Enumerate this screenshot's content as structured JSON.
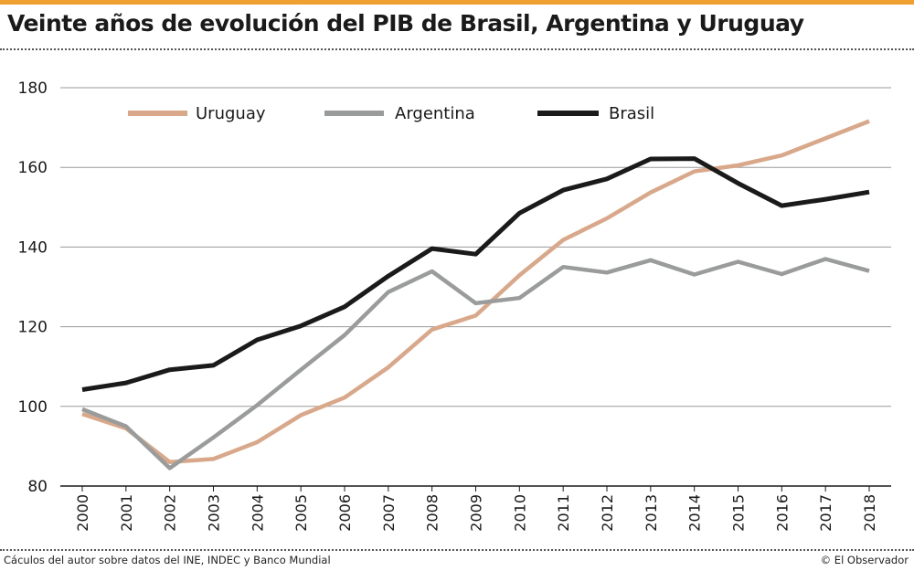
{
  "header": {
    "title": "Veinte años de evolución del PIB de Brasil, Argentina y Uruguay"
  },
  "footer": {
    "source": "Cáculos del autor sobre datos del INE, INDEC y Banco Mundial",
    "credit": "© El Observador"
  },
  "colors": {
    "accent_rule": "#f0a032",
    "uruguay": "#d9a88a",
    "argentina": "#9a9c9b",
    "brasil": "#1a1a1a",
    "grid": "#9a9a9a"
  },
  "chart_data": {
    "type": "line",
    "title": "Veinte años de evolución del PIB de Brasil, Argentina y Uruguay",
    "xlabel": "",
    "ylabel": "",
    "ylim": [
      80,
      180
    ],
    "yticks": [
      "80",
      "100",
      "120",
      "140",
      "160",
      "180"
    ],
    "grid": true,
    "legend_position": "top",
    "categories": [
      "2000",
      "2001",
      "2002",
      "2003",
      "2004",
      "2005",
      "2006",
      "2007",
      "2008",
      "2009",
      "2010",
      "2011",
      "2012",
      "2013",
      "2014",
      "2015",
      "2016",
      "2017",
      "2018"
    ],
    "series": [
      {
        "name": "Uruguay",
        "color": "#d9a88a",
        "values": [
          98.1,
          94.5,
          86.0,
          86.8,
          91.0,
          97.8,
          102.2,
          109.8,
          119.3,
          122.8,
          132.9,
          141.8,
          147.2,
          153.7,
          159.0,
          160.5,
          163.0,
          167.3,
          171.6
        ]
      },
      {
        "name": "Argentina",
        "color": "#9a9c9b",
        "values": [
          99.3,
          95.0,
          84.5,
          92.2,
          100.3,
          109.2,
          117.9,
          128.7,
          133.9,
          125.9,
          127.2,
          135.0,
          133.6,
          136.7,
          133.1,
          136.3,
          133.2,
          137.0,
          134.0
        ]
      },
      {
        "name": "Brasil",
        "color": "#1a1a1a",
        "values": [
          104.2,
          105.9,
          109.2,
          110.3,
          116.7,
          120.2,
          125.0,
          132.7,
          139.6,
          138.2,
          148.5,
          154.3,
          157.1,
          162.1,
          162.2,
          156.0,
          150.4,
          152.0,
          153.8
        ]
      }
    ]
  }
}
